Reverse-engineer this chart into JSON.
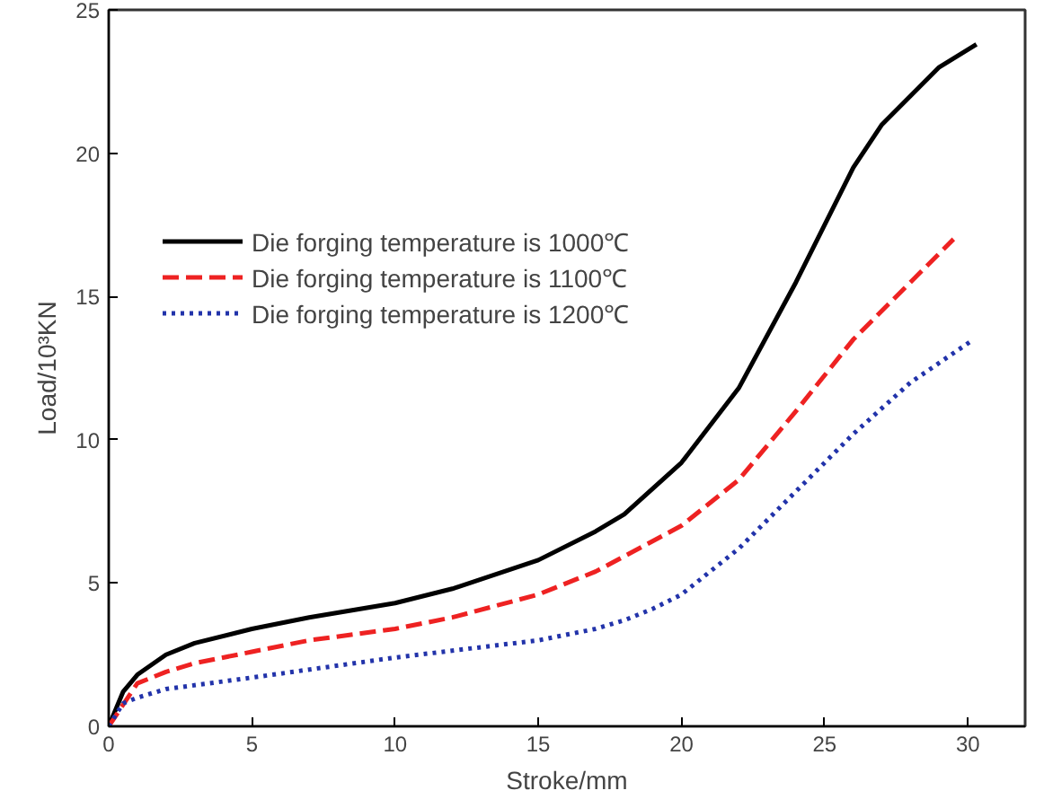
{
  "chart_data": {
    "type": "line",
    "xlabel": "Stroke/mm",
    "ylabel": "Load/10³KN",
    "xlim": [
      0,
      32
    ],
    "ylim": [
      0,
      25
    ],
    "xticks": [
      0,
      5,
      10,
      15,
      20,
      25,
      30
    ],
    "yticks": [
      0,
      5,
      10,
      15,
      20,
      25
    ],
    "grid": false,
    "legend": "top left",
    "series": [
      {
        "name": "Die forging temperature is 1000℃",
        "color": "#000000",
        "line_style": "solid",
        "x": [
          0,
          0.5,
          1,
          2,
          3,
          5,
          7,
          10,
          12,
          15,
          17,
          18,
          20,
          22,
          24,
          25,
          26,
          27,
          28,
          29,
          30.3
        ],
        "values": [
          0,
          1.2,
          1.8,
          2.5,
          2.9,
          3.4,
          3.8,
          4.3,
          4.8,
          5.8,
          6.8,
          7.4,
          9.2,
          11.8,
          15.5,
          17.5,
          19.5,
          21,
          22,
          23,
          23.8
        ]
      },
      {
        "name": "Die forging temperature is 1100℃",
        "color": "#ee2222",
        "line_style": "dashed",
        "x": [
          0,
          1,
          2,
          3,
          5,
          7,
          10,
          12,
          15,
          17,
          20,
          22,
          24,
          26,
          28,
          29.5
        ],
        "values": [
          0,
          1.5,
          1.9,
          2.2,
          2.6,
          3.0,
          3.4,
          3.8,
          4.6,
          5.4,
          7,
          8.6,
          11,
          13.5,
          15.5,
          17.0
        ]
      },
      {
        "name": "Die forging temperature is 1200℃",
        "color": "#2233aa",
        "line_style": "dotted",
        "x": [
          0,
          0.5,
          1,
          2,
          5,
          10,
          15,
          17,
          18,
          19,
          20,
          22,
          24,
          26,
          28,
          30.2
        ],
        "values": [
          0,
          0.8,
          1.0,
          1.3,
          1.7,
          2.4,
          3.0,
          3.4,
          3.7,
          4.1,
          4.6,
          6.2,
          8.2,
          10.2,
          12,
          13.5
        ]
      }
    ]
  }
}
